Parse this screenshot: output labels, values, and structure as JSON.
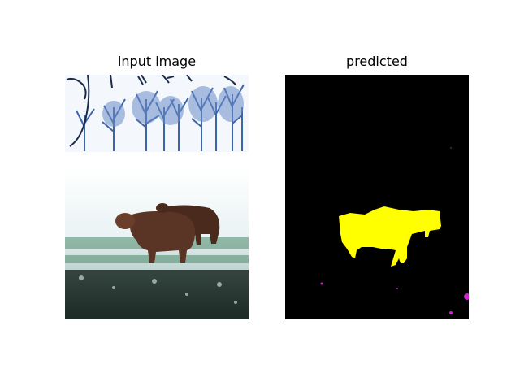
{
  "panels": [
    {
      "title": "input image"
    },
    {
      "title": "predicted"
    }
  ],
  "colors": {
    "background": "#ffffff",
    "mask_background": "#000000",
    "mask_foreground": "#ffff00",
    "mask_noise": "#d020d0",
    "sky": "#f4f8fc",
    "trees": "#3a5a9a",
    "snow": "#eef4f8",
    "grass_dark": "#1c2a24",
    "sheep": "#5a3424"
  }
}
